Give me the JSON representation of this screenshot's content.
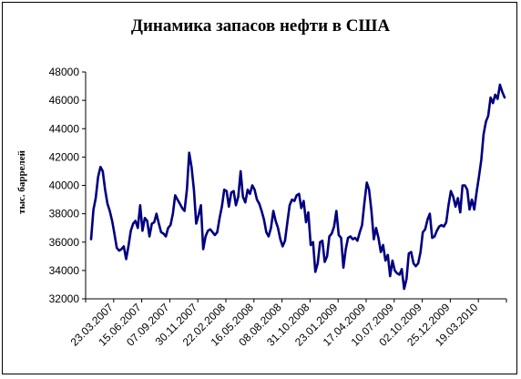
{
  "chart_data": {
    "type": "line",
    "title": "Динамика запасов нефти в США",
    "xlabel": "",
    "ylabel": "тыс. баррелей",
    "ylim": [
      32000,
      48000
    ],
    "yticks": [
      32000,
      34000,
      36000,
      38000,
      40000,
      42000,
      44000,
      46000,
      48000
    ],
    "xticks": [
      "23.03.2007",
      "15.06.2007",
      "07.09.2007",
      "30.11.2007",
      "22.02.2008",
      "16.05.2008",
      "08.08.2008",
      "31.10.2008",
      "23.01.2009",
      "17.04.2009",
      "10.07.2009",
      "02.10.2009",
      "25.12.2009",
      "19.03.2010"
    ],
    "grid": false,
    "legend": "none",
    "line_color": "#000080",
    "series": [
      {
        "values": [
          36200,
          38300,
          39100,
          40600,
          41300,
          41000,
          39700,
          38700,
          38200,
          37500,
          36600,
          35600,
          35400,
          35500,
          35700,
          34800,
          35700,
          36800,
          37300,
          37500,
          37000,
          38600,
          36800,
          37700,
          37500,
          36400,
          37300,
          37400,
          38000,
          37300,
          36700,
          36600,
          36400,
          37000,
          37200,
          38000,
          39300,
          39000,
          38700,
          38400,
          38200,
          39700,
          42300,
          41300,
          39700,
          37300,
          37900,
          38600,
          35500,
          36400,
          36800,
          36900,
          36700,
          36500,
          36700,
          37700,
          38500,
          39700,
          39600,
          38500,
          39500,
          39600,
          38600,
          39200,
          41000,
          39200,
          38800,
          39700,
          39400,
          40000,
          39700,
          39000,
          38700,
          38200,
          37600,
          36700,
          36400,
          37000,
          38200,
          37500,
          37000,
          36200,
          35700,
          36100,
          37400,
          38600,
          39000,
          38900,
          39300,
          39400,
          38400,
          38900,
          37400,
          38100,
          35800,
          36000,
          33900,
          34500,
          36000,
          36100,
          34600,
          35000,
          36400,
          36600,
          37100,
          38200,
          36500,
          36300,
          34200,
          35500,
          36300,
          36400,
          36200,
          36300,
          36100,
          36700,
          37200,
          38800,
          40200,
          39700,
          38200,
          36200,
          37000,
          36300,
          35300,
          35800,
          34700,
          35100,
          33600,
          34700,
          34000,
          33800,
          33700,
          34100,
          32700,
          33400,
          35200,
          35300,
          34500,
          34300,
          34500,
          35300,
          36700,
          36900,
          37600,
          38000,
          36300,
          36400,
          36800,
          37100,
          37200,
          37100,
          37400,
          38600,
          39600,
          39200,
          38500,
          39100,
          38100,
          40000,
          40000,
          39700,
          38300,
          39000,
          38300,
          39500,
          40600,
          41800,
          43600,
          44500,
          44900,
          46200,
          45800,
          46400,
          46100,
          47100,
          46600,
          46200
        ]
      }
    ]
  }
}
